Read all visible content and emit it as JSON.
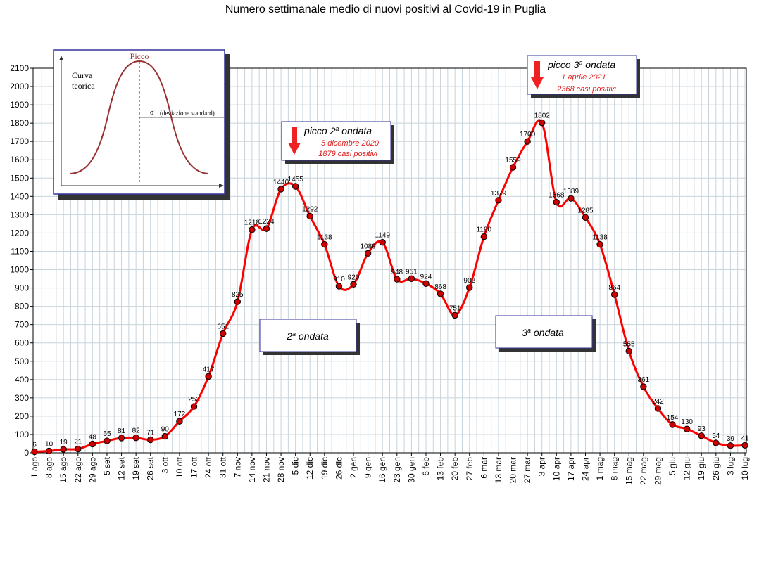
{
  "chart_data": {
    "type": "line",
    "title": "Numero settimanale medio di nuovi positivi al Covid-19 in Puglia",
    "ylim": [
      0,
      2100
    ],
    "yticks": [
      0,
      100,
      200,
      300,
      400,
      500,
      600,
      700,
      800,
      900,
      1000,
      1100,
      1200,
      1300,
      1400,
      1500,
      1600,
      1700,
      1800,
      1900,
      2000,
      2100
    ],
    "grid": true,
    "categories": [
      "1 ago",
      "8 ago",
      "15 ago",
      "22 ago",
      "29 ago",
      "5 set",
      "12 set",
      "19 set",
      "26 set",
      "3 ott",
      "10 ott",
      "17 ott",
      "24 ott",
      "31 ott",
      "7 nov",
      "14 nov",
      "21 nov",
      "28 nov",
      "5 dic",
      "12 dic",
      "19 dic",
      "26 dic",
      "2 gen",
      "9 gen",
      "16 gen",
      "23 gen",
      "30 gen",
      "6 feb",
      "13 feb",
      "20 feb",
      "27 feb",
      "6 mar",
      "13 mar",
      "20 mar",
      "27 mar",
      "3 apr",
      "10 apr",
      "17 apr",
      "24 apr",
      "1 mag",
      "8 mag",
      "15 mag",
      "22 mag",
      "29 mag",
      "5 giu",
      "12 giu",
      "19 giu",
      "26 giu",
      "3 lug",
      "10 lug"
    ],
    "series": [
      {
        "color": "#ff0000",
        "marker_color": "#cc0000",
        "values": [
          6,
          10,
          19,
          21,
          48,
          65,
          81,
          82,
          71,
          90,
          172,
          253,
          417,
          651,
          825,
          1218,
          1224,
          1440,
          1455,
          1292,
          1138,
          910,
          920,
          1089,
          1149,
          948,
          951,
          924,
          868,
          751,
          902,
          1180,
          1379,
          1559,
          1700,
          1802,
          1368,
          1389,
          1285,
          1138,
          864,
          555,
          361,
          242,
          154,
          130,
          93,
          54,
          39,
          41
        ]
      }
    ],
    "annotations": {
      "inset": {
        "peak_label": "Picco",
        "curve_label_1": "Curva",
        "curve_label_2": "teorica",
        "sigma_symbol": "σ",
        "sigma_label": "(deviazione standard)"
      },
      "peak2": {
        "title_prefix": "picco 2",
        "title_sup": "a",
        "title_suffix": " ondata",
        "date": "5 dicembre 2020",
        "cases": "1879 casi positivi"
      },
      "peak3": {
        "title_prefix": "picco 3",
        "title_sup": "a",
        "title_suffix": " ondata",
        "date": "1 aprile 2021",
        "cases": "2368 casi positivi"
      },
      "wave2": {
        "num": "2",
        "sup": "a",
        "text": " ondata"
      },
      "wave3": {
        "num": "3",
        "sup": "a",
        "text": " ondata"
      }
    }
  }
}
